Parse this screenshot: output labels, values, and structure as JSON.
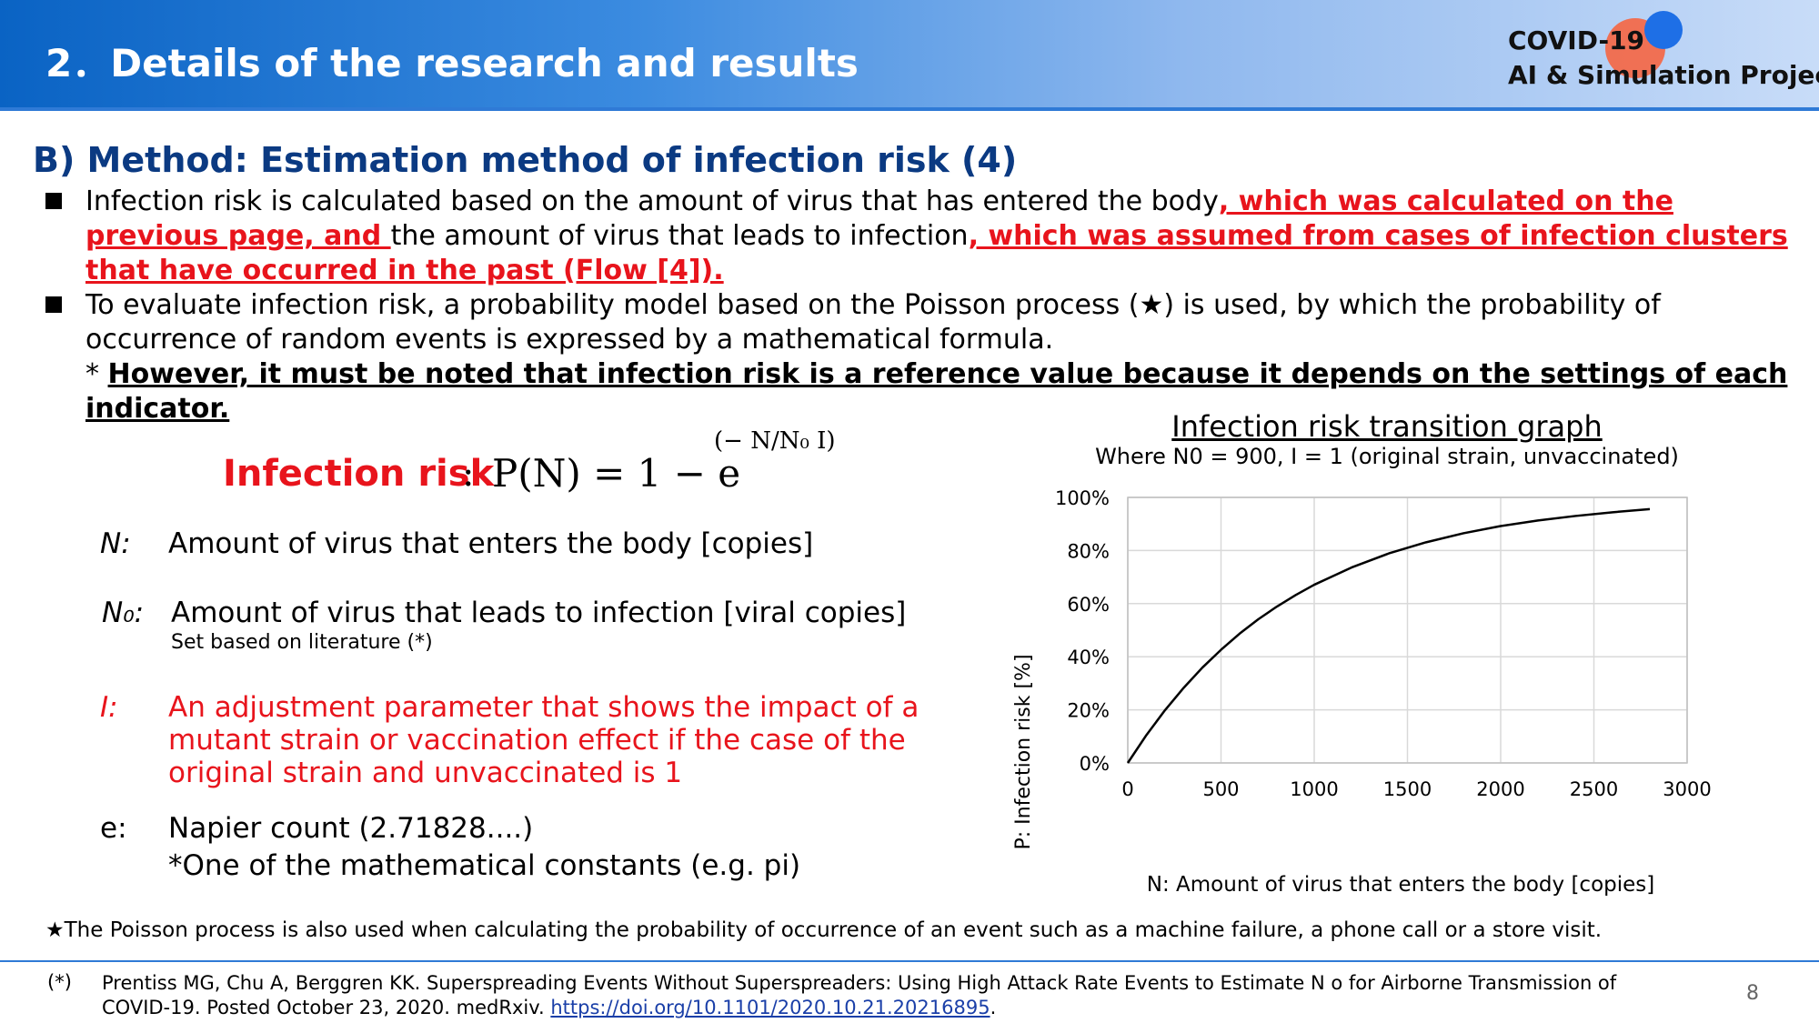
{
  "header": {
    "title": "2．Details of the research and results",
    "logo_line1": "COVID-19",
    "logo_line2": "AI & Simulation Project"
  },
  "section": {
    "heading": "B) Method: Estimation method of infection risk (4)"
  },
  "bullets": {
    "b1_text1": "Infection risk is calculated based on the amount of virus that has entered the body",
    "b1_red1": ", which was calculated on the previous page, and ",
    "b1_text2": "the amount of virus that leads to infection",
    "b1_red2": ", which was assumed from cases of infection clusters that have occurred in the past (Flow [4]).",
    "b2_text": "To evaluate infection risk, a probability model based on the Poisson process (★) is used, by which the probability of occurrence of random events is expressed by a mathematical formula.",
    "note_prefix": "* ",
    "note_bold": "However, it must be noted that infection risk is a reference value because it depends on the settings of each indicator."
  },
  "formula": {
    "label": "Infection risk",
    "colon": ":",
    "expr": "P(N) = 1 − e",
    "exponent": "(− N/N₀ I)"
  },
  "variables": {
    "n_sym": "N:",
    "n_desc": "Amount of virus that enters the body [copies]",
    "n0_sym": "N₀:",
    "n0_desc": "Amount of virus that leads to infection [viral copies]",
    "n0_sub": "Set based on literature (*)",
    "i_sym": "I:",
    "i_desc": "An adjustment parameter that shows the impact of a mutant strain or vaccination effect if the case of the original strain and unvaccinated is 1",
    "e_sym": "e:",
    "e_desc1": "Napier count (2.71828....)",
    "e_desc2": "*One of the mathematical constants (e.g. pi)"
  },
  "chart_data": {
    "type": "line",
    "title": "Infection risk transition graph",
    "subtitle": "Where N0 = 900, I = 1 (original strain, unvaccinated)",
    "xlabel": "N: Amount of virus that enters the body [copies]",
    "ylabel": "P: Infection risk [%]",
    "xlim": [
      0,
      3000
    ],
    "ylim": [
      0,
      100
    ],
    "x_ticks": [
      "0",
      "500",
      "1000",
      "1500",
      "2000",
      "2500",
      "3000"
    ],
    "y_ticks": [
      "0%",
      "20%",
      "40%",
      "60%",
      "80%",
      "100%"
    ],
    "grid": true,
    "legend": "none",
    "series": [
      {
        "x": [
          0,
          100,
          200,
          300,
          400,
          500,
          600,
          700,
          800,
          900,
          1000,
          1200,
          1400,
          1600,
          1800,
          2000,
          2200,
          2400,
          2600,
          2800
        ],
        "y": [
          0,
          10.5,
          19.9,
          28.3,
          35.9,
          42.6,
          48.7,
          54.1,
          58.9,
          63.2,
          67.1,
          73.6,
          78.9,
          83.1,
          86.5,
          89.2,
          91.3,
          93.0,
          94.4,
          95.6
        ]
      }
    ]
  },
  "footer": {
    "star_note": "★The Poisson process is also used when calculating the probability of occurrence of an event such as a machine failure, a phone call or a store visit.",
    "ref_mark": "(*)",
    "ref_text": "Prentiss MG, Chu A, Berggren KK. Superspreading Events Without Superspreaders: Using High Attack Rate Events to Estimate N o for Airborne Transmission of COVID-19. Posted October 23, 2020. medRxiv. ",
    "ref_link": "https://doi.org/10.1101/2020.10.21.20216895",
    "ref_end": ".",
    "page_number": "8"
  }
}
